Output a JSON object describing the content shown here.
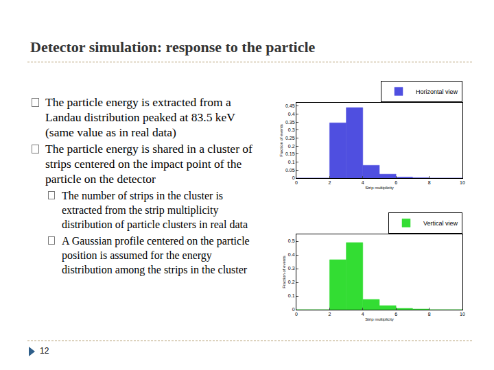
{
  "header": {
    "title": "Detector simulation: response to the particle"
  },
  "bullets": [
    {
      "text": "The particle energy is extracted from a Landau distribution peaked at 83.5 keV (same value as in real data)",
      "sub": []
    },
    {
      "text": "The particle energy is shared in a cluster of strips centered on the impact point of the particle on the detector",
      "sub": [
        "The number of strips in the cluster is extracted from the strip multiplicity distribution of particle clusters in real data",
        "A Gaussian profile centered on the particle position is assumed for the energy distribution among the strips in the cluster"
      ]
    }
  ],
  "footer": {
    "page": "12"
  },
  "chart_data": [
    {
      "type": "histogram",
      "xlabel": "Strip multiplicity",
      "ylabel": "Fraction of events",
      "bins": [
        0,
        1,
        2,
        3,
        4,
        5,
        6,
        7,
        8,
        9,
        10
      ],
      "series": [
        {
          "name": "Horizontal view",
          "color": "#4f4fe0",
          "values": [
            0,
            0,
            0.345,
            0.44,
            0.08,
            0.025,
            0.007,
            0.003,
            0,
            0
          ]
        }
      ],
      "xlim": [
        0,
        10
      ],
      "xticks": [
        0,
        2,
        4,
        6,
        8,
        10
      ],
      "ylim": [
        0,
        0.47
      ],
      "yticks": [
        0,
        0.05,
        0.1,
        0.15,
        0.2,
        0.25,
        0.3,
        0.35,
        0.4,
        0.45
      ],
      "legend": "upper right"
    },
    {
      "type": "histogram",
      "xlabel": "Strip multiplicity",
      "ylabel": "Fraction of events",
      "bins": [
        0,
        1,
        2,
        3,
        4,
        5,
        6,
        7,
        8,
        9,
        10
      ],
      "series": [
        {
          "name": "Vertical view",
          "color": "#33dd33",
          "values": [
            0,
            0,
            0.365,
            0.49,
            0.075,
            0.03,
            0.01,
            0.005,
            0,
            0
          ]
        }
      ],
      "xlim": [
        0,
        10
      ],
      "xticks": [
        0,
        2,
        4,
        6,
        8,
        10
      ],
      "ylim": [
        0,
        0.55
      ],
      "yticks": [
        0,
        0.1,
        0.2,
        0.3,
        0.4,
        0.5
      ],
      "legend": "upper right"
    }
  ]
}
